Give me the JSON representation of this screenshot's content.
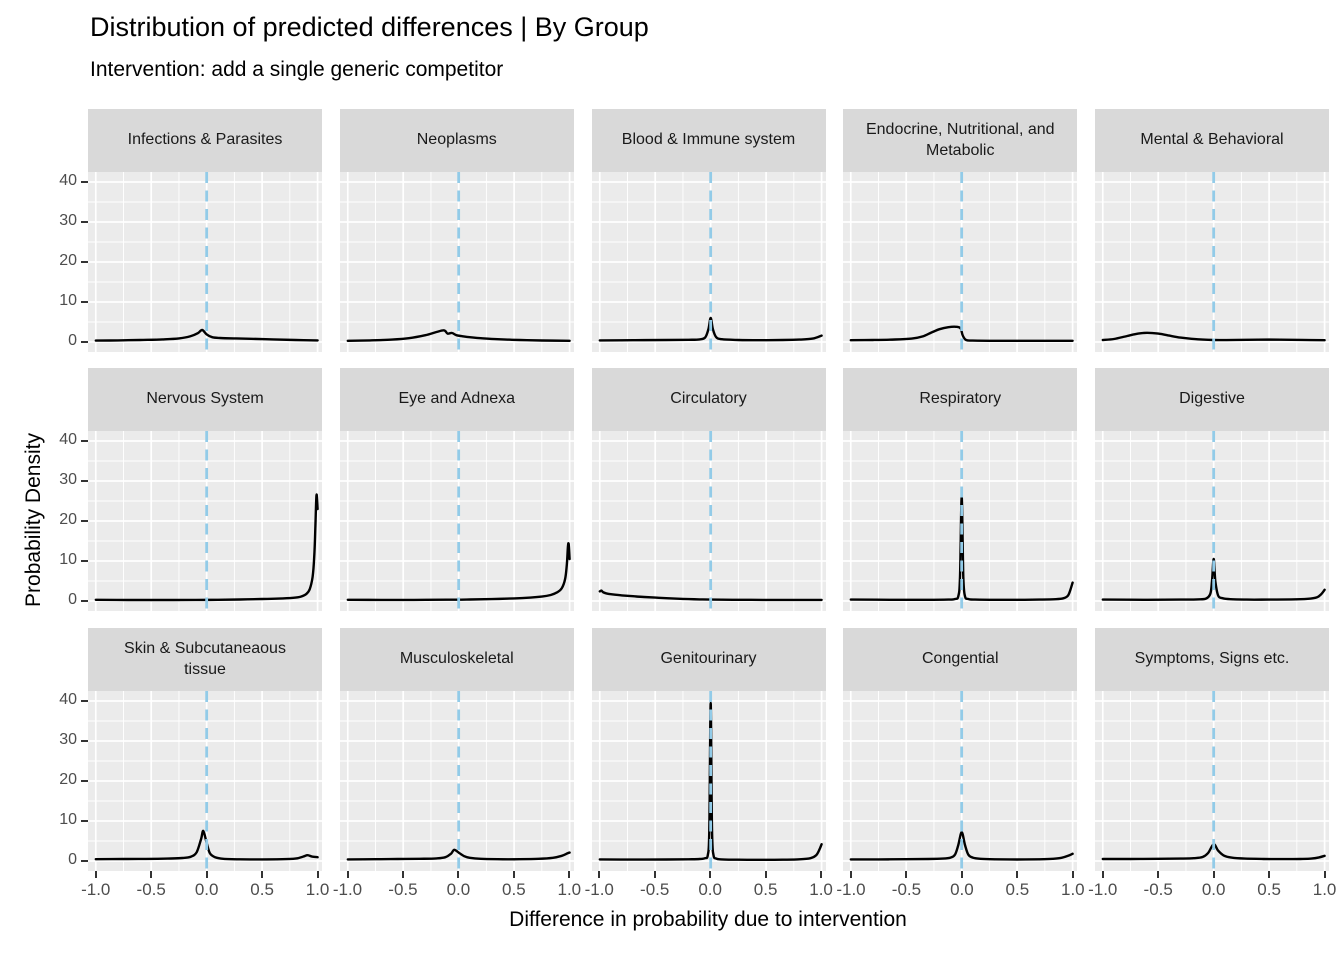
{
  "title": "Distribution of predicted differences | By Group",
  "subtitle": "Intervention: add a single generic competitor",
  "chart_data": {
    "type": "line",
    "subtype": "faceted-density",
    "layout": {
      "rows": 3,
      "cols": 5
    },
    "xlabel": "Difference in probability due to intervention",
    "ylabel": "Probability Density",
    "xlim": [
      -1.07,
      1.04
    ],
    "ylim": [
      -2.5,
      42.5
    ],
    "x_ticks": [
      -1.0,
      -0.5,
      0.0,
      0.5,
      1.0
    ],
    "x_tick_labels": [
      "-1.0",
      "-0.5",
      "0.0",
      "0.5",
      "1.0"
    ],
    "x_minor_ticks": [
      -0.75,
      -0.25,
      0.25,
      0.75
    ],
    "y_ticks": [
      0,
      10,
      20,
      30,
      40
    ],
    "y_tick_labels": [
      "0",
      "10",
      "20",
      "30",
      "40"
    ],
    "y_minor_ticks": [
      5,
      15,
      25,
      35
    ],
    "grid": true,
    "legend": "none",
    "reference_line_x": 0,
    "panels": [
      {
        "label": "Infections & Parasites",
        "points": [
          [
            -1,
            0.35
          ],
          [
            -0.8,
            0.4
          ],
          [
            -0.6,
            0.5
          ],
          [
            -0.4,
            0.65
          ],
          [
            -0.25,
            0.9
          ],
          [
            -0.15,
            1.4
          ],
          [
            -0.08,
            2.2
          ],
          [
            -0.04,
            3.0
          ],
          [
            0,
            1.9
          ],
          [
            0.05,
            1.2
          ],
          [
            0.12,
            1.0
          ],
          [
            0.25,
            0.9
          ],
          [
            0.4,
            0.8
          ],
          [
            0.6,
            0.65
          ],
          [
            0.8,
            0.5
          ],
          [
            1,
            0.4
          ]
        ]
      },
      {
        "label": "Neoplasms",
        "points": [
          [
            -1,
            0.3
          ],
          [
            -0.8,
            0.4
          ],
          [
            -0.6,
            0.6
          ],
          [
            -0.45,
            0.95
          ],
          [
            -0.3,
            1.7
          ],
          [
            -0.2,
            2.5
          ],
          [
            -0.13,
            2.9
          ],
          [
            -0.1,
            2.1
          ],
          [
            -0.06,
            2.25
          ],
          [
            -0.02,
            1.7
          ],
          [
            0.03,
            1.45
          ],
          [
            0.1,
            1.2
          ],
          [
            0.2,
            0.95
          ],
          [
            0.35,
            0.7
          ],
          [
            0.55,
            0.5
          ],
          [
            0.75,
            0.38
          ],
          [
            1,
            0.3
          ]
        ]
      },
      {
        "label": "Blood & Immune system",
        "points": [
          [
            -1,
            0.4
          ],
          [
            -0.7,
            0.45
          ],
          [
            -0.4,
            0.5
          ],
          [
            -0.2,
            0.55
          ],
          [
            -0.1,
            0.65
          ],
          [
            -0.05,
            1.1
          ],
          [
            -0.02,
            3.2
          ],
          [
            0,
            6.0
          ],
          [
            0.02,
            3.2
          ],
          [
            0.05,
            1.2
          ],
          [
            0.1,
            0.7
          ],
          [
            0.25,
            0.5
          ],
          [
            0.45,
            0.45
          ],
          [
            0.65,
            0.5
          ],
          [
            0.8,
            0.6
          ],
          [
            0.92,
            0.85
          ],
          [
            1,
            1.6
          ]
        ]
      },
      {
        "label": "Endocrine, Nutritional, and Metabolic",
        "points": [
          [
            -1,
            0.45
          ],
          [
            -0.8,
            0.5
          ],
          [
            -0.6,
            0.62
          ],
          [
            -0.45,
            0.85
          ],
          [
            -0.35,
            1.4
          ],
          [
            -0.27,
            2.4
          ],
          [
            -0.2,
            3.2
          ],
          [
            -0.12,
            3.7
          ],
          [
            -0.05,
            3.8
          ],
          [
            -0.01,
            3.4
          ],
          [
            0.01,
            1.6
          ],
          [
            0.04,
            0.5
          ],
          [
            0.1,
            0.35
          ],
          [
            0.3,
            0.3
          ],
          [
            0.6,
            0.3
          ],
          [
            1,
            0.3
          ]
        ]
      },
      {
        "label": "Mental & Behavioral",
        "points": [
          [
            -1,
            0.5
          ],
          [
            -0.9,
            0.75
          ],
          [
            -0.78,
            1.5
          ],
          [
            -0.68,
            2.1
          ],
          [
            -0.6,
            2.3
          ],
          [
            -0.5,
            2.1
          ],
          [
            -0.4,
            1.6
          ],
          [
            -0.3,
            1.1
          ],
          [
            -0.2,
            0.8
          ],
          [
            -0.1,
            0.6
          ],
          [
            0,
            0.5
          ],
          [
            0.2,
            0.52
          ],
          [
            0.4,
            0.58
          ],
          [
            0.6,
            0.58
          ],
          [
            0.8,
            0.52
          ],
          [
            1,
            0.45
          ]
        ]
      },
      {
        "label": "Nervous System",
        "points": [
          [
            -1,
            0.3
          ],
          [
            -0.7,
            0.25
          ],
          [
            -0.4,
            0.25
          ],
          [
            -0.1,
            0.27
          ],
          [
            0.1,
            0.3
          ],
          [
            0.3,
            0.38
          ],
          [
            0.5,
            0.5
          ],
          [
            0.65,
            0.6
          ],
          [
            0.78,
            0.8
          ],
          [
            0.85,
            1.1
          ],
          [
            0.9,
            1.8
          ],
          [
            0.93,
            3
          ],
          [
            0.955,
            6
          ],
          [
            0.97,
            11
          ],
          [
            0.98,
            18
          ],
          [
            0.99,
            26.5
          ],
          [
            1,
            23
          ]
        ]
      },
      {
        "label": "Eye and Adnexa",
        "points": [
          [
            -1,
            0.3
          ],
          [
            -0.7,
            0.27
          ],
          [
            -0.4,
            0.28
          ],
          [
            -0.1,
            0.32
          ],
          [
            0.1,
            0.38
          ],
          [
            0.3,
            0.48
          ],
          [
            0.5,
            0.65
          ],
          [
            0.65,
            0.85
          ],
          [
            0.75,
            1.1
          ],
          [
            0.83,
            1.5
          ],
          [
            0.89,
            2.2
          ],
          [
            0.93,
            3.2
          ],
          [
            0.96,
            5.5
          ],
          [
            0.975,
            9
          ],
          [
            0.985,
            13.5
          ],
          [
            0.992,
            14.2
          ],
          [
            1,
            10.5
          ]
        ]
      },
      {
        "label": "Circulatory",
        "points": [
          [
            -1,
            2.4
          ],
          [
            -0.985,
            2.6
          ],
          [
            -0.97,
            2.2
          ],
          [
            -0.94,
            1.9
          ],
          [
            -0.9,
            1.7
          ],
          [
            -0.8,
            1.4
          ],
          [
            -0.7,
            1.2
          ],
          [
            -0.6,
            1.0
          ],
          [
            -0.5,
            0.85
          ],
          [
            -0.4,
            0.7
          ],
          [
            -0.3,
            0.58
          ],
          [
            -0.2,
            0.48
          ],
          [
            -0.1,
            0.4
          ],
          [
            0,
            0.35
          ],
          [
            0.2,
            0.3
          ],
          [
            0.5,
            0.28
          ],
          [
            0.75,
            0.28
          ],
          [
            1,
            0.28
          ]
        ]
      },
      {
        "label": "Respiratory",
        "points": [
          [
            -1,
            0.35
          ],
          [
            -0.6,
            0.3
          ],
          [
            -0.3,
            0.3
          ],
          [
            -0.12,
            0.35
          ],
          [
            -0.06,
            0.5
          ],
          [
            -0.03,
            1.2
          ],
          [
            -0.015,
            6
          ],
          [
            0,
            26
          ],
          [
            0.015,
            6
          ],
          [
            0.03,
            1.2
          ],
          [
            0.06,
            0.5
          ],
          [
            0.12,
            0.35
          ],
          [
            0.3,
            0.3
          ],
          [
            0.5,
            0.3
          ],
          [
            0.7,
            0.35
          ],
          [
            0.85,
            0.45
          ],
          [
            0.92,
            0.7
          ],
          [
            0.96,
            1.4
          ],
          [
            0.985,
            3.2
          ],
          [
            1,
            4.6
          ]
        ]
      },
      {
        "label": "Digestive",
        "points": [
          [
            -1,
            0.35
          ],
          [
            -0.6,
            0.3
          ],
          [
            -0.3,
            0.35
          ],
          [
            -0.15,
            0.4
          ],
          [
            -0.07,
            0.6
          ],
          [
            -0.03,
            1.8
          ],
          [
            -0.015,
            5
          ],
          [
            0,
            10.5
          ],
          [
            0.015,
            5
          ],
          [
            0.04,
            1.4
          ],
          [
            0.08,
            0.7
          ],
          [
            0.15,
            0.45
          ],
          [
            0.3,
            0.35
          ],
          [
            0.5,
            0.35
          ],
          [
            0.7,
            0.4
          ],
          [
            0.85,
            0.55
          ],
          [
            0.93,
            0.9
          ],
          [
            0.97,
            1.7
          ],
          [
            1,
            2.8
          ]
        ]
      },
      {
        "label": "Skin & Subcutaneaous tissue",
        "points": [
          [
            -1,
            0.45
          ],
          [
            -0.75,
            0.5
          ],
          [
            -0.55,
            0.52
          ],
          [
            -0.35,
            0.6
          ],
          [
            -0.22,
            0.75
          ],
          [
            -0.14,
            1.1
          ],
          [
            -0.09,
            2.2
          ],
          [
            -0.05,
            5.5
          ],
          [
            -0.03,
            7.5
          ],
          [
            0,
            4.5
          ],
          [
            0.03,
            1.9
          ],
          [
            0.08,
            0.9
          ],
          [
            0.15,
            0.55
          ],
          [
            0.3,
            0.42
          ],
          [
            0.5,
            0.4
          ],
          [
            0.68,
            0.45
          ],
          [
            0.8,
            0.6
          ],
          [
            0.87,
            1.1
          ],
          [
            0.91,
            1.45
          ],
          [
            0.95,
            1.1
          ],
          [
            1,
            0.95
          ]
        ]
      },
      {
        "label": "Musculoskeletal",
        "points": [
          [
            -1,
            0.4
          ],
          [
            -0.75,
            0.45
          ],
          [
            -0.55,
            0.5
          ],
          [
            -0.35,
            0.55
          ],
          [
            -0.2,
            0.65
          ],
          [
            -0.12,
            0.95
          ],
          [
            -0.07,
            1.8
          ],
          [
            -0.04,
            2.8
          ],
          [
            0,
            2.1
          ],
          [
            0.05,
            1.2
          ],
          [
            0.1,
            0.8
          ],
          [
            0.2,
            0.55
          ],
          [
            0.35,
            0.45
          ],
          [
            0.55,
            0.45
          ],
          [
            0.72,
            0.55
          ],
          [
            0.85,
            0.8
          ],
          [
            0.93,
            1.3
          ],
          [
            0.98,
            1.9
          ],
          [
            1,
            2.1
          ]
        ]
      },
      {
        "label": "Genitourinary",
        "points": [
          [
            -1,
            0.4
          ],
          [
            -0.7,
            0.35
          ],
          [
            -0.4,
            0.38
          ],
          [
            -0.2,
            0.42
          ],
          [
            -0.1,
            0.5
          ],
          [
            -0.05,
            0.7
          ],
          [
            -0.025,
            1.6
          ],
          [
            -0.012,
            8
          ],
          [
            0,
            39.5
          ],
          [
            0.012,
            8
          ],
          [
            0.025,
            1.6
          ],
          [
            0.05,
            0.6
          ],
          [
            0.1,
            0.4
          ],
          [
            0.25,
            0.32
          ],
          [
            0.45,
            0.3
          ],
          [
            0.65,
            0.33
          ],
          [
            0.8,
            0.42
          ],
          [
            0.9,
            0.7
          ],
          [
            0.95,
            1.4
          ],
          [
            0.98,
            2.8
          ],
          [
            1,
            4.2
          ]
        ]
      },
      {
        "label": "Congential",
        "points": [
          [
            -1,
            0.4
          ],
          [
            -0.75,
            0.4
          ],
          [
            -0.5,
            0.45
          ],
          [
            -0.3,
            0.5
          ],
          [
            -0.17,
            0.6
          ],
          [
            -0.1,
            0.85
          ],
          [
            -0.06,
            1.6
          ],
          [
            -0.03,
            4
          ],
          [
            0,
            7.2
          ],
          [
            0.03,
            4
          ],
          [
            0.06,
            1.6
          ],
          [
            0.1,
            0.85
          ],
          [
            0.17,
            0.55
          ],
          [
            0.3,
            0.42
          ],
          [
            0.5,
            0.38
          ],
          [
            0.7,
            0.42
          ],
          [
            0.82,
            0.55
          ],
          [
            0.9,
            0.8
          ],
          [
            0.96,
            1.3
          ],
          [
            1,
            1.8
          ]
        ]
      },
      {
        "label": "Symptoms, Signs etc.",
        "points": [
          [
            -1,
            0.5
          ],
          [
            -0.75,
            0.5
          ],
          [
            -0.5,
            0.55
          ],
          [
            -0.3,
            0.6
          ],
          [
            -0.18,
            0.7
          ],
          [
            -0.1,
            1.0
          ],
          [
            -0.05,
            2.0
          ],
          [
            0,
            4.2
          ],
          [
            0.04,
            2.6
          ],
          [
            0.09,
            1.4
          ],
          [
            0.16,
            0.85
          ],
          [
            0.28,
            0.6
          ],
          [
            0.45,
            0.5
          ],
          [
            0.62,
            0.48
          ],
          [
            0.78,
            0.5
          ],
          [
            0.88,
            0.6
          ],
          [
            0.95,
            0.9
          ],
          [
            1,
            1.3
          ]
        ]
      }
    ]
  },
  "colors": {
    "background": "#FFFFFF",
    "panel_bg": "#EBEBEB",
    "strip_bg": "#D9D9D9",
    "grid": "#FFFFFF",
    "curve": "#000000",
    "reference_line": "#92CBE8",
    "axis_text": "#4D4D4D",
    "tick_mark": "#333333",
    "strip_text": "#1A1A1A"
  }
}
